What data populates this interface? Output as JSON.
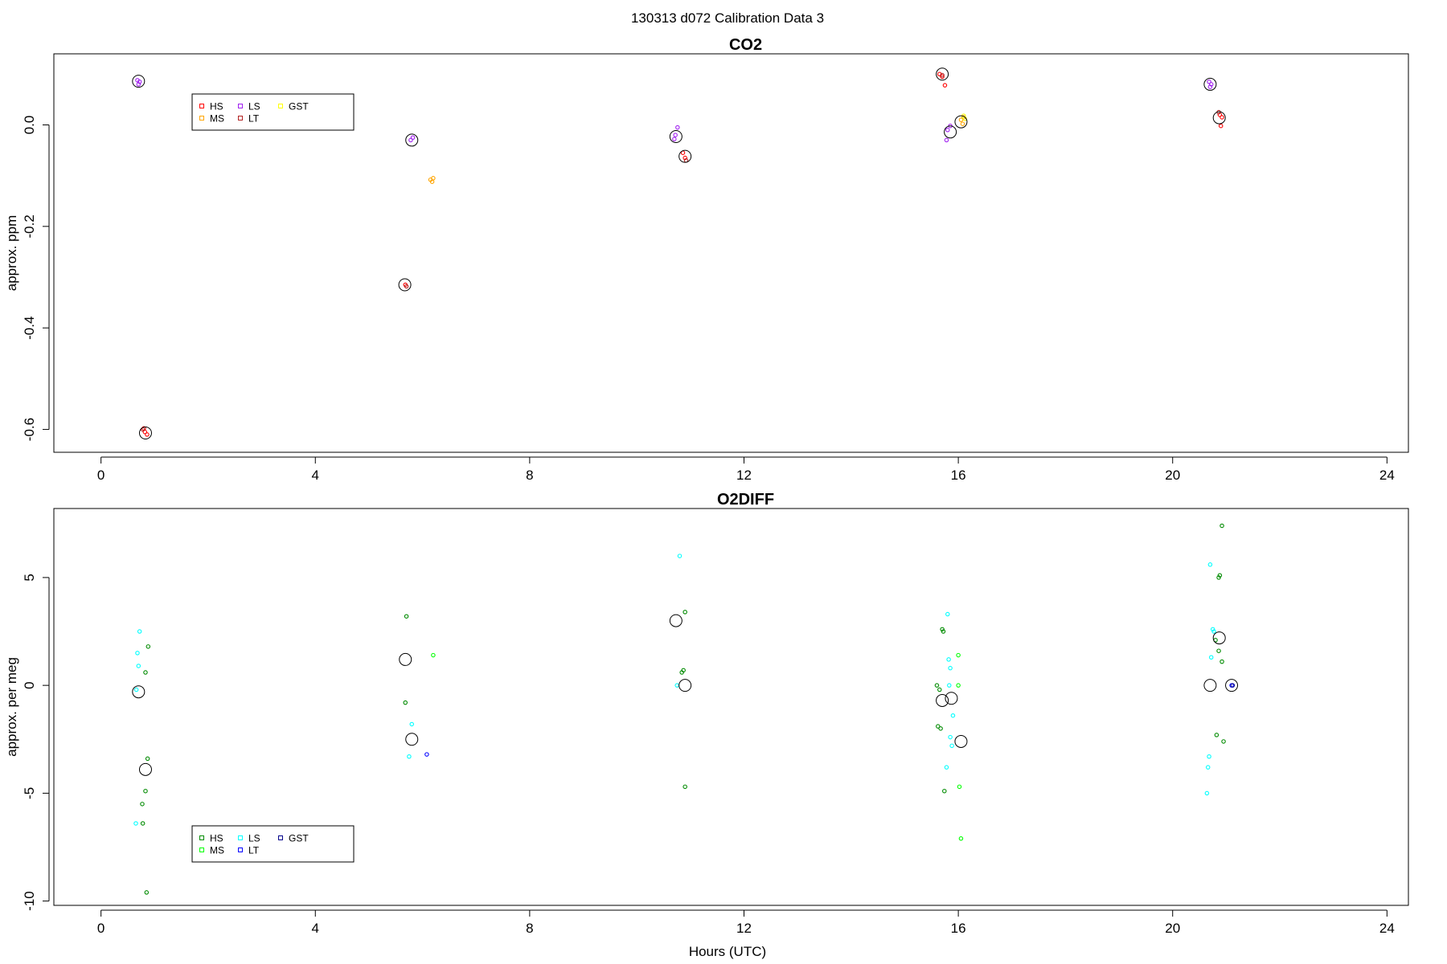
{
  "figure": {
    "title": "130313   d072   Calibration Data 3",
    "xlabel": "Hours (UTC)"
  },
  "chart_data": [
    {
      "type": "scatter",
      "title": "CO2",
      "xlabel": "",
      "ylabel": "approx. ppm",
      "xlim": [
        -0.88,
        24.4
      ],
      "ylim": [
        -0.645,
        0.14
      ],
      "xticks": [
        0,
        4,
        8,
        12,
        16,
        20,
        24
      ],
      "yticks": [
        -0.6,
        -0.4,
        -0.2,
        0.0
      ],
      "ytick_labels": [
        "-0.6",
        "-0.4",
        "-0.2",
        "0.0"
      ],
      "legend": {
        "position": "top-left",
        "entries": [
          {
            "label": "HS",
            "color": "#ff0000"
          },
          {
            "label": "MS",
            "color": "#ffa500"
          },
          {
            "label": "LS",
            "color": "#a020f0"
          },
          {
            "label": "LT",
            "color": "#b22222"
          },
          {
            "label": "GST",
            "color": "#ffff00"
          }
        ]
      },
      "series": [
        {
          "name": "HS",
          "color": "#ff0000",
          "points": [
            [
              0.82,
              -0.605
            ],
            [
              0.86,
              -0.61
            ],
            [
              0.8,
              -0.598
            ],
            [
              5.68,
              -0.315
            ],
            [
              10.9,
              -0.065
            ],
            [
              10.86,
              -0.055
            ],
            [
              15.65,
              0.1
            ],
            [
              15.7,
              0.095
            ],
            [
              15.75,
              0.078
            ],
            [
              20.88,
              0.02
            ],
            [
              20.92,
              0.015
            ],
            [
              20.9,
              -0.002
            ]
          ]
        },
        {
          "name": "MS",
          "color": "#ffa500",
          "points": [
            [
              6.15,
              -0.108
            ],
            [
              6.2,
              -0.105
            ],
            [
              6.18,
              -0.112
            ],
            [
              16.05,
              0.01
            ],
            [
              16.1,
              0.015
            ],
            [
              16.08,
              0.002
            ]
          ]
        },
        {
          "name": "LS",
          "color": "#a020f0",
          "points": [
            [
              0.68,
              0.088
            ],
            [
              0.72,
              0.085
            ],
            [
              0.7,
              0.08
            ],
            [
              5.82,
              -0.025
            ],
            [
              5.78,
              -0.03
            ],
            [
              10.72,
              -0.02
            ],
            [
              10.76,
              -0.005
            ],
            [
              10.7,
              -0.028
            ],
            [
              15.8,
              -0.01
            ],
            [
              15.85,
              -0.002
            ],
            [
              15.78,
              -0.03
            ],
            [
              20.68,
              0.085
            ],
            [
              20.72,
              0.08
            ],
            [
              20.7,
              0.075
            ]
          ]
        },
        {
          "name": "LT",
          "color": "#b22222",
          "points": [
            [
              0.78,
              -0.6
            ],
            [
              5.7,
              -0.318
            ],
            [
              10.92,
              -0.07
            ],
            [
              15.7,
              0.098
            ],
            [
              20.86,
              0.025
            ]
          ]
        },
        {
          "name": "GST",
          "color": "#ffff00",
          "points": [
            [
              16.1,
              0.018
            ],
            [
              16.12,
              0.012
            ]
          ]
        },
        {
          "name": "",
          "color": "#000000",
          "mean": true,
          "points": [
            [
              0.7,
              0.086
            ],
            [
              0.83,
              -0.607
            ],
            [
              5.67,
              -0.315
            ],
            [
              5.8,
              -0.03
            ],
            [
              10.73,
              -0.023
            ],
            [
              10.9,
              -0.062
            ],
            [
              15.7,
              0.1
            ],
            [
              15.85,
              -0.014
            ],
            [
              16.05,
              0.006
            ],
            [
              20.7,
              0.08
            ],
            [
              20.87,
              0.014
            ]
          ]
        }
      ]
    },
    {
      "type": "scatter",
      "title": "O2DIFF",
      "xlabel": "Hours (UTC)",
      "ylabel": "approx. per meg",
      "xlim": [
        -0.88,
        24.4
      ],
      "ylim": [
        -10.2,
        8.2
      ],
      "xticks": [
        0,
        4,
        8,
        12,
        16,
        20,
        24
      ],
      "yticks": [
        -10,
        -5,
        0,
        5
      ],
      "ytick_labels": [
        "-10",
        "-5",
        "0",
        "5"
      ],
      "legend": {
        "position": "bottom-left",
        "entries": [
          {
            "label": "HS",
            "color": "#008b00"
          },
          {
            "label": "MS",
            "color": "#00ff00"
          },
          {
            "label": "LS",
            "color": "#00ffff"
          },
          {
            "label": "LT",
            "color": "#0000ff"
          },
          {
            "label": "GST",
            "color": "#00008b"
          }
        ]
      },
      "series": [
        {
          "name": "HS",
          "color": "#008b00",
          "points": [
            [
              0.88,
              1.8
            ],
            [
              0.83,
              0.6
            ],
            [
              0.87,
              -3.4
            ],
            [
              0.83,
              -4.9
            ],
            [
              0.77,
              -5.5
            ],
            [
              0.78,
              -6.4
            ],
            [
              0.85,
              -9.6
            ],
            [
              5.7,
              3.2
            ],
            [
              5.68,
              -0.8
            ],
            [
              10.9,
              3.4
            ],
            [
              10.87,
              0.7
            ],
            [
              10.84,
              0.6
            ],
            [
              10.9,
              -4.7
            ],
            [
              15.7,
              2.6
            ],
            [
              15.72,
              2.5
            ],
            [
              15.6,
              0.0
            ],
            [
              15.65,
              -0.2
            ],
            [
              15.62,
              -1.9
            ],
            [
              15.67,
              -2.0
            ],
            [
              15.74,
              -4.9
            ],
            [
              20.92,
              7.4
            ],
            [
              20.88,
              5.1
            ],
            [
              20.86,
              5.0
            ],
            [
              20.8,
              2.1
            ],
            [
              20.86,
              1.6
            ],
            [
              20.92,
              1.1
            ],
            [
              20.82,
              -2.3
            ],
            [
              20.95,
              -2.6
            ]
          ]
        },
        {
          "name": "MS",
          "color": "#00ff00",
          "points": [
            [
              6.2,
              1.4
            ],
            [
              16.0,
              1.4
            ],
            [
              16.0,
              0.0
            ],
            [
              16.02,
              -4.7
            ],
            [
              16.05,
              -7.1
            ]
          ]
        },
        {
          "name": "LS",
          "color": "#00ffff",
          "points": [
            [
              0.72,
              2.5
            ],
            [
              0.68,
              1.5
            ],
            [
              0.7,
              0.9
            ],
            [
              0.66,
              -0.2
            ],
            [
              0.65,
              -6.4
            ],
            [
              5.8,
              -1.8
            ],
            [
              5.75,
              -3.3
            ],
            [
              10.8,
              6.0
            ],
            [
              10.75,
              0.0
            ],
            [
              15.8,
              3.3
            ],
            [
              15.82,
              1.2
            ],
            [
              15.85,
              0.8
            ],
            [
              15.83,
              0.0
            ],
            [
              15.9,
              -1.4
            ],
            [
              15.85,
              -2.4
            ],
            [
              15.88,
              -2.8
            ],
            [
              15.78,
              -3.8
            ],
            [
              20.7,
              5.6
            ],
            [
              20.75,
              2.6
            ],
            [
              20.77,
              2.5
            ],
            [
              20.72,
              1.3
            ],
            [
              20.68,
              -3.3
            ],
            [
              20.66,
              -3.8
            ],
            [
              20.64,
              -5.0
            ]
          ]
        },
        {
          "name": "LT",
          "color": "#0000ff",
          "points": [
            [
              6.08,
              -3.2
            ],
            [
              21.1,
              0.0
            ]
          ]
        },
        {
          "name": "GST",
          "color": "#00008b",
          "points": [
            [
              21.12,
              0.0
            ]
          ]
        },
        {
          "name": "",
          "color": "#000000",
          "mean": true,
          "points": [
            [
              0.7,
              -0.3
            ],
            [
              0.83,
              -3.9
            ],
            [
              5.68,
              1.2
            ],
            [
              5.8,
              -2.5
            ],
            [
              10.73,
              3.0
            ],
            [
              10.9,
              0.0
            ],
            [
              15.7,
              -0.7
            ],
            [
              15.87,
              -0.6
            ],
            [
              16.05,
              -2.6
            ],
            [
              20.7,
              0.0
            ],
            [
              20.87,
              2.2
            ],
            [
              21.1,
              0.0
            ]
          ]
        }
      ]
    }
  ]
}
